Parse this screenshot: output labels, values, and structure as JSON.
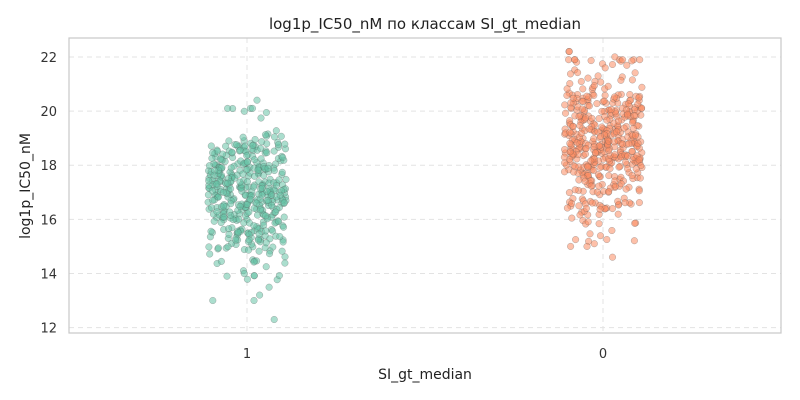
{
  "chart_data": {
    "type": "scatter",
    "style": "strip-plot",
    "title": "log1p_IC50_nM по классам SI_gt_median",
    "xlabel": "SI_gt_median",
    "ylabel": "log1p_IC50_nM",
    "categories": [
      "1",
      "0"
    ],
    "ylim": [
      11.8,
      22.7
    ],
    "yticks": [
      "12",
      "14",
      "16",
      "18",
      "20",
      "22"
    ],
    "grid": true,
    "colors": {
      "1": "#66c2a5",
      "0": "#fc8d62"
    },
    "series": [
      {
        "category": "1",
        "count_approx": 420,
        "range": [
          12.3,
          20.4
        ],
        "center": 17.0,
        "spread": 1.25,
        "outliers": [
          20.1,
          20.4,
          13.2,
          13.0,
          12.3,
          13.0,
          14.0
        ]
      },
      {
        "category": "0",
        "count_approx": 460,
        "range": [
          14.6,
          22.2
        ],
        "center": 18.9,
        "spread": 1.45,
        "outliers": [
          22.2,
          22.2,
          22.0,
          15.1,
          14.6,
          15.0
        ]
      }
    ]
  }
}
